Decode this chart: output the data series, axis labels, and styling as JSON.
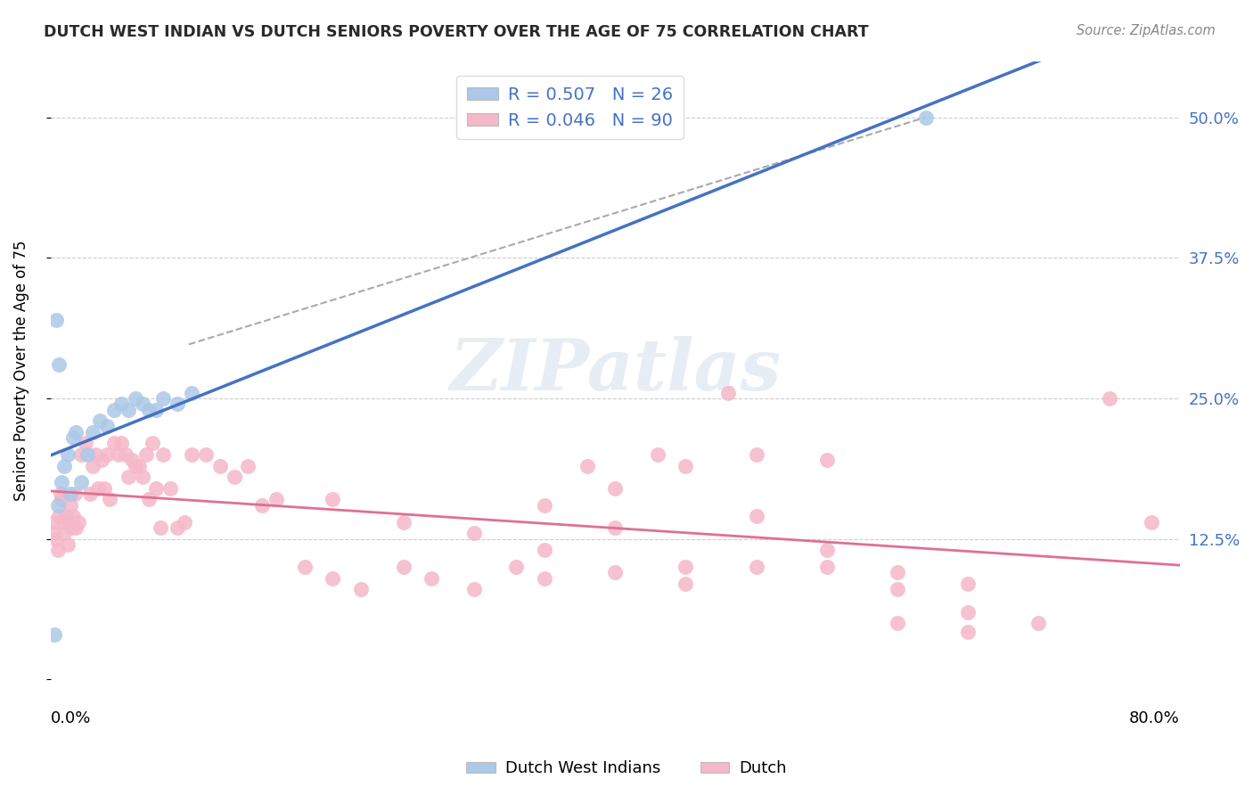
{
  "title": "DUTCH WEST INDIAN VS DUTCH SENIORS POVERTY OVER THE AGE OF 75 CORRELATION CHART",
  "source": "Source: ZipAtlas.com",
  "ylabel": "Seniors Poverty Over the Age of 75",
  "legend_entry1": "R = 0.507   N = 26",
  "legend_entry2": "R = 0.046   N = 90",
  "legend_label1": "Dutch West Indians",
  "legend_label2": "Dutch",
  "blue_color": "#adc8e8",
  "blue_line_color": "#4472c4",
  "pink_color": "#f5b8c8",
  "pink_line_color": "#e07090",
  "blue_scatter_x": [
    0.005,
    0.008,
    0.01,
    0.012,
    0.014,
    0.016,
    0.018,
    0.022,
    0.026,
    0.03,
    0.035,
    0.04,
    0.045,
    0.05,
    0.055,
    0.06,
    0.065,
    0.07,
    0.075,
    0.08,
    0.09,
    0.1,
    0.004,
    0.006,
    0.62,
    0.003
  ],
  "blue_scatter_y": [
    0.155,
    0.175,
    0.19,
    0.2,
    0.165,
    0.215,
    0.22,
    0.175,
    0.2,
    0.22,
    0.23,
    0.225,
    0.24,
    0.245,
    0.24,
    0.25,
    0.245,
    0.24,
    0.24,
    0.25,
    0.245,
    0.255,
    0.32,
    0.28,
    0.5,
    0.04
  ],
  "pink_scatter_x": [
    0.002,
    0.003,
    0.004,
    0.005,
    0.006,
    0.007,
    0.008,
    0.009,
    0.01,
    0.011,
    0.012,
    0.013,
    0.014,
    0.015,
    0.016,
    0.017,
    0.018,
    0.02,
    0.022,
    0.025,
    0.028,
    0.03,
    0.032,
    0.034,
    0.036,
    0.038,
    0.04,
    0.042,
    0.045,
    0.048,
    0.05,
    0.053,
    0.055,
    0.058,
    0.06,
    0.063,
    0.065,
    0.068,
    0.07,
    0.072,
    0.075,
    0.078,
    0.08,
    0.085,
    0.09,
    0.095,
    0.1,
    0.11,
    0.12,
    0.13,
    0.14,
    0.15,
    0.16,
    0.18,
    0.2,
    0.22,
    0.25,
    0.27,
    0.3,
    0.33,
    0.35,
    0.38,
    0.4,
    0.43,
    0.45,
    0.48,
    0.5,
    0.55,
    0.6,
    0.65,
    0.7,
    0.75,
    0.78,
    0.2,
    0.25,
    0.3,
    0.35,
    0.4,
    0.45,
    0.5,
    0.55,
    0.6,
    0.65,
    0.5,
    0.55,
    0.35,
    0.4,
    0.45,
    0.6,
    0.65
  ],
  "pink_scatter_y": [
    0.14,
    0.13,
    0.125,
    0.115,
    0.145,
    0.165,
    0.16,
    0.14,
    0.13,
    0.145,
    0.12,
    0.14,
    0.155,
    0.135,
    0.145,
    0.165,
    0.135,
    0.14,
    0.2,
    0.21,
    0.165,
    0.19,
    0.2,
    0.17,
    0.195,
    0.17,
    0.2,
    0.16,
    0.21,
    0.2,
    0.21,
    0.2,
    0.18,
    0.195,
    0.19,
    0.19,
    0.18,
    0.2,
    0.16,
    0.21,
    0.17,
    0.135,
    0.2,
    0.17,
    0.135,
    0.14,
    0.2,
    0.2,
    0.19,
    0.18,
    0.19,
    0.155,
    0.16,
    0.1,
    0.09,
    0.08,
    0.1,
    0.09,
    0.08,
    0.1,
    0.09,
    0.19,
    0.17,
    0.2,
    0.19,
    0.255,
    0.1,
    0.1,
    0.08,
    0.06,
    0.05,
    0.25,
    0.14,
    0.16,
    0.14,
    0.13,
    0.115,
    0.095,
    0.085,
    0.145,
    0.115,
    0.095,
    0.085,
    0.2,
    0.195,
    0.155,
    0.135,
    0.1,
    0.05,
    0.042
  ],
  "xlim": [
    0.0,
    0.8
  ],
  "ylim": [
    0.0,
    0.55
  ],
  "watermark": "ZIPatlas",
  "dashed_line_x": [
    0.098,
    0.62
  ],
  "dashed_line_y": [
    0.298,
    0.5
  ],
  "ytick_vals": [
    0.0,
    0.125,
    0.25,
    0.375,
    0.5
  ],
  "ytick_labels_right": [
    "",
    "12.5%",
    "25.0%",
    "37.5%",
    "50.0%"
  ]
}
